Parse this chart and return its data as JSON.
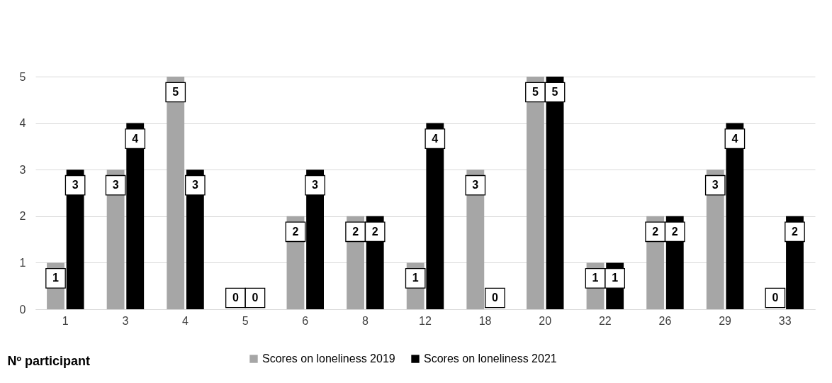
{
  "chart_data": {
    "type": "bar",
    "xlabel": "Nº participant",
    "categories": [
      "1",
      "3",
      "4",
      "5",
      "6",
      "8",
      "12",
      "18",
      "20",
      "22",
      "26",
      "29",
      "33"
    ],
    "series": [
      {
        "name": "Scores on loneliness 2019",
        "color": "#a6a6a6",
        "values": [
          1,
          3,
          5,
          0,
          2,
          2,
          1,
          3,
          5,
          1,
          2,
          3,
          0
        ]
      },
      {
        "name": "Scores on loneliness 2021",
        "color": "#000000",
        "values": [
          3,
          4,
          3,
          0,
          3,
          2,
          4,
          0,
          5,
          1,
          2,
          4,
          2
        ]
      }
    ],
    "ylim": [
      0,
      5
    ],
    "yticks": [
      0,
      1,
      2,
      3,
      4,
      5
    ],
    "grid": "y",
    "legend": "bottom",
    "data_labels": true
  }
}
